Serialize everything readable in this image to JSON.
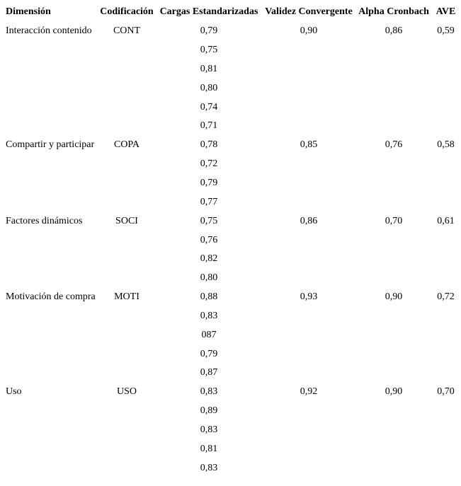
{
  "page": {
    "background_color": "#ffffff",
    "text_color": "#000000"
  },
  "table": {
    "columns": [
      "Dimensión",
      "Codificación",
      "Cargas Estandarizadas",
      "Validez Convergente",
      "Alpha Cronbach",
      "AVE"
    ],
    "groups": [
      {
        "dimension": "Interacción contenido",
        "codificacion": "CONT",
        "cargas_estandarizadas": [
          "0,79",
          "0,75",
          "0,81",
          "0,80",
          "0,74",
          "0,71"
        ],
        "validez_convergente": "0,90",
        "alpha_cronbach": "0,86",
        "ave": "0,59"
      },
      {
        "dimension": "Compartir y participar",
        "codificacion": "COPA",
        "cargas_estandarizadas": [
          "0,78",
          "0,72",
          "0,79",
          "0,77"
        ],
        "validez_convergente": "0,85",
        "alpha_cronbach": "0,76",
        "ave": "0,58"
      },
      {
        "dimension": "Factores dinámicos",
        "codificacion": "SOCI",
        "cargas_estandarizadas": [
          "0,75",
          "0,76",
          "0,82",
          "0,80"
        ],
        "validez_convergente": "0,86",
        "alpha_cronbach": "0,70",
        "ave": "0,61"
      },
      {
        "dimension": "Motivación de compra",
        "codificacion": "MOTI",
        "cargas_estandarizadas": [
          "0,88",
          "0,83",
          "087",
          "0,79",
          "0,87"
        ],
        "validez_convergente": "0,93",
        "alpha_cronbach": "0,90",
        "ave": "0,72"
      },
      {
        "dimension": "Uso",
        "codificacion": "USO",
        "cargas_estandarizadas": [
          "0,83",
          "0,89",
          "0,83",
          "0,81",
          "0,83"
        ],
        "validez_convergente": "0,92",
        "alpha_cronbach": "0,90",
        "ave": "0,70"
      }
    ]
  }
}
